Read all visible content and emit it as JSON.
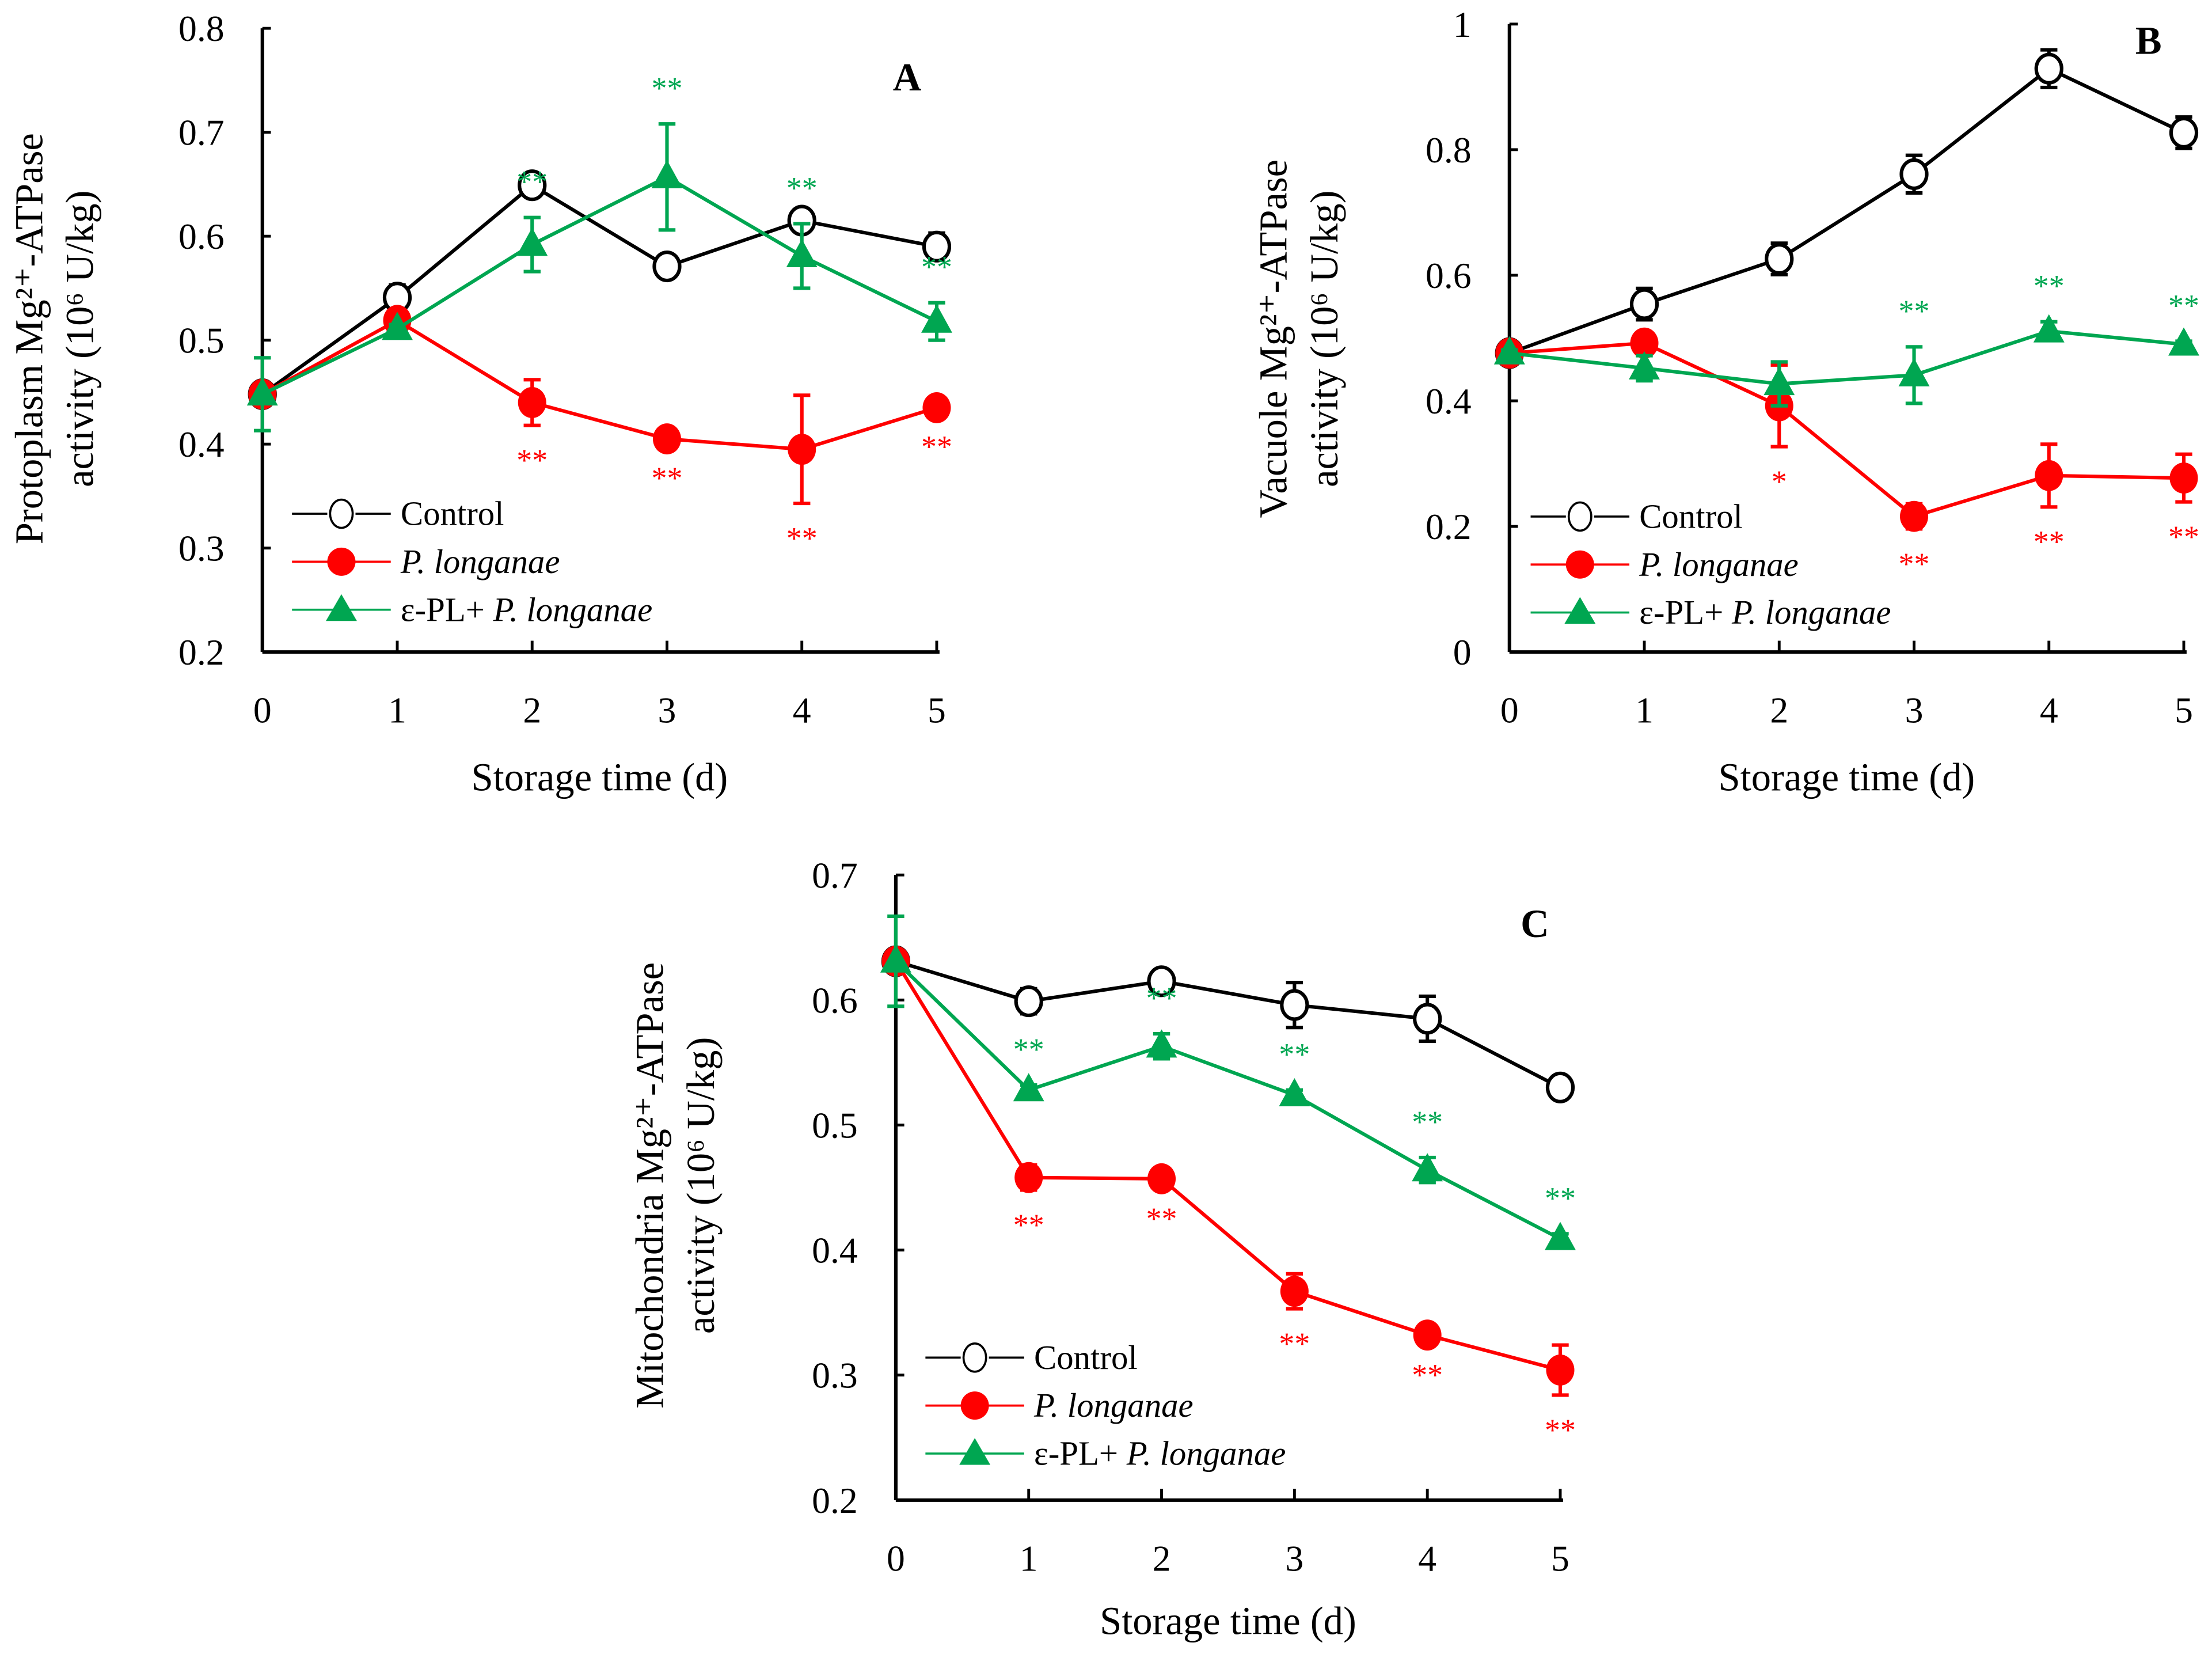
{
  "colors": {
    "control": "#000000",
    "pathogen": "#ff0000",
    "epl": "#00a651"
  },
  "legend": {
    "control": "Control",
    "pathogen": "P. longanae",
    "epl_prefix": "ε-PL+ ",
    "epl_species": "P. longanae"
  },
  "chart_data": [
    {
      "type": "line",
      "panel": "A",
      "title": "A",
      "xlabel": "Storage time (d)",
      "ylabel": [
        "Protoplasm Mg²⁺-ATPase",
        "activity (10⁶ U/kg)"
      ],
      "x": [
        0,
        1,
        2,
        3,
        4,
        5
      ],
      "ylim": [
        0.2,
        0.8
      ],
      "yticks": [
        0.2,
        0.3,
        0.4,
        0.5,
        0.6,
        0.7,
        0.8
      ],
      "series": [
        {
          "name": "Control",
          "key": "control",
          "values": [
            0.448,
            0.541,
            0.649,
            0.571,
            0.615,
            0.59
          ],
          "errors": [
            0.004,
            0.012,
            0.005,
            0.005,
            0.005,
            0.013
          ],
          "stars": [
            "",
            "",
            "",
            "",
            "",
            ""
          ]
        },
        {
          "name": "P. longanae",
          "key": "pathogen",
          "values": [
            0.448,
            0.519,
            0.44,
            0.405,
            0.395,
            0.435
          ],
          "errors": [
            0.004,
            0.006,
            0.022,
            0.004,
            0.052,
            0.004
          ],
          "stars": [
            "",
            "",
            "**",
            "**",
            "**",
            "**"
          ]
        },
        {
          "name": "ε-PL+ P. longanae",
          "key": "epl",
          "values": [
            0.448,
            0.511,
            0.592,
            0.657,
            0.581,
            0.518
          ],
          "errors": [
            0.035,
            0.004,
            0.026,
            0.051,
            0.031,
            0.018
          ],
          "stars": [
            "",
            "",
            "**",
            "**",
            "**",
            "**"
          ]
        }
      ]
    },
    {
      "type": "line",
      "panel": "B",
      "title": "B",
      "xlabel": "Storage time (d)",
      "ylabel": [
        "Vacuole Mg²⁺-ATPase",
        "activity (10⁶ U/kg)"
      ],
      "x": [
        0,
        1,
        2,
        3,
        4,
        5
      ],
      "ylim": [
        0,
        1
      ],
      "yticks": [
        0,
        0.2,
        0.4,
        0.6,
        0.8,
        1
      ],
      "series": [
        {
          "name": "Control",
          "key": "control",
          "values": [
            0.476,
            0.554,
            0.626,
            0.761,
            0.929,
            0.827
          ],
          "errors": [
            0.005,
            0.025,
            0.025,
            0.03,
            0.03,
            0.025
          ],
          "stars": [
            "",
            "",
            "",
            "",
            "",
            ""
          ]
        },
        {
          "name": "P. longanae",
          "key": "pathogen",
          "values": [
            0.476,
            0.492,
            0.392,
            0.216,
            0.281,
            0.277
          ],
          "errors": [
            0.005,
            0.005,
            0.065,
            0.02,
            0.05,
            0.038
          ],
          "stars": [
            "",
            "",
            "*",
            "**",
            "**",
            "**"
          ]
        },
        {
          "name": "ε-PL+ P. longanae",
          "key": "epl",
          "values": [
            0.476,
            0.452,
            0.427,
            0.441,
            0.511,
            0.49
          ],
          "errors": [
            0.005,
            0.02,
            0.035,
            0.045,
            0.015,
            0.005
          ],
          "stars": [
            "",
            "",
            "",
            "**",
            "**",
            "**"
          ]
        }
      ]
    },
    {
      "type": "line",
      "panel": "C",
      "title": "C",
      "xlabel": "Storage time (d)",
      "ylabel": [
        "Mitochondria Mg²⁺-ATPase",
        "activity (10⁶ U/kg)"
      ],
      "x": [
        0,
        1,
        2,
        3,
        4,
        5
      ],
      "ylim": [
        0.2,
        0.7
      ],
      "yticks": [
        0.2,
        0.3,
        0.4,
        0.5,
        0.6,
        0.7
      ],
      "series": [
        {
          "name": "Control",
          "key": "control",
          "values": [
            0.631,
            0.599,
            0.615,
            0.596,
            0.585,
            0.53
          ],
          "errors": [
            0.004,
            0.01,
            0.004,
            0.018,
            0.018,
            0.004
          ],
          "stars": [
            "",
            "",
            "",
            "",
            "",
            ""
          ]
        },
        {
          "name": "P. longanae",
          "key": "pathogen",
          "values": [
            0.631,
            0.458,
            0.457,
            0.367,
            0.332,
            0.304
          ],
          "errors": [
            0.004,
            0.01,
            0.004,
            0.014,
            0.004,
            0.02
          ],
          "stars": [
            "",
            "**",
            "**",
            "**",
            "**",
            "**"
          ]
        },
        {
          "name": "ε-PL+ P. longanae",
          "key": "epl",
          "values": [
            0.631,
            0.528,
            0.563,
            0.524,
            0.464,
            0.409
          ],
          "errors": [
            0.036,
            0.004,
            0.01,
            0.004,
            0.01,
            0.004
          ],
          "stars": [
            "",
            "**",
            "**",
            "**",
            "**",
            "**"
          ]
        }
      ]
    }
  ]
}
